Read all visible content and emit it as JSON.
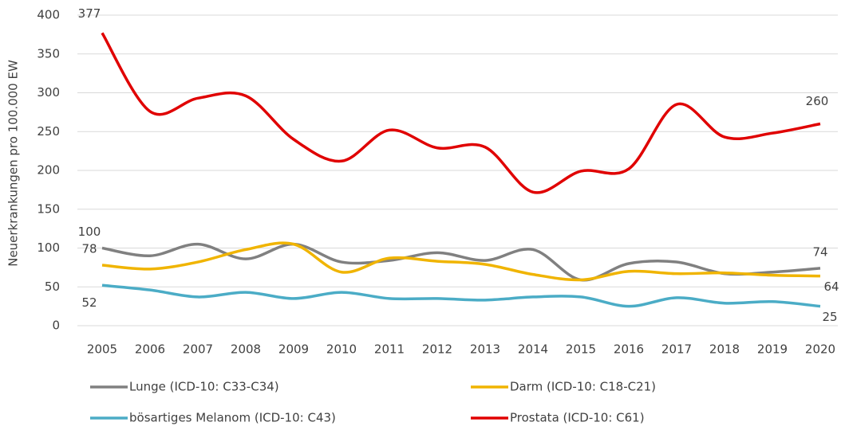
{
  "chart_data": {
    "type": "line",
    "y_label": "Neuerkrankungen pro 100.000 EW",
    "categories": [
      "2005",
      "2006",
      "2007",
      "2008",
      "2009",
      "2010",
      "2011",
      "2012",
      "2013",
      "2014",
      "2015",
      "2016",
      "2017",
      "2018",
      "2019",
      "2020"
    ],
    "series": [
      {
        "name": "Lunge (ICD-10: C33-C34)",
        "color": "#808080",
        "values": [
          100,
          90,
          105,
          86,
          105,
          82,
          84,
          94,
          84,
          98,
          59,
          80,
          82,
          67,
          69,
          74
        ]
      },
      {
        "name": "Darm (ICD-10: C18-C21)",
        "color": "#f0b400",
        "values": [
          78,
          73,
          82,
          98,
          105,
          69,
          87,
          83,
          79,
          66,
          59,
          70,
          67,
          68,
          65,
          64
        ]
      },
      {
        "name": "bösartiges Melanom (ICD-10: C43)",
        "color": "#4bacc6",
        "values": [
          52,
          46,
          37,
          43,
          35,
          43,
          35,
          35,
          33,
          37,
          37,
          25,
          36,
          29,
          31,
          25
        ]
      },
      {
        "name": "Prostata (ICD-10: C61)",
        "color": "#e00000",
        "values": [
          377,
          276,
          293,
          296,
          240,
          212,
          252,
          229,
          230,
          172,
          199,
          202,
          285,
          243,
          248,
          260
        ]
      }
    ],
    "ylim": [
      0,
      400
    ],
    "yticks": [
      0,
      50,
      100,
      150,
      200,
      250,
      300,
      350,
      400
    ],
    "grid": true
  }
}
